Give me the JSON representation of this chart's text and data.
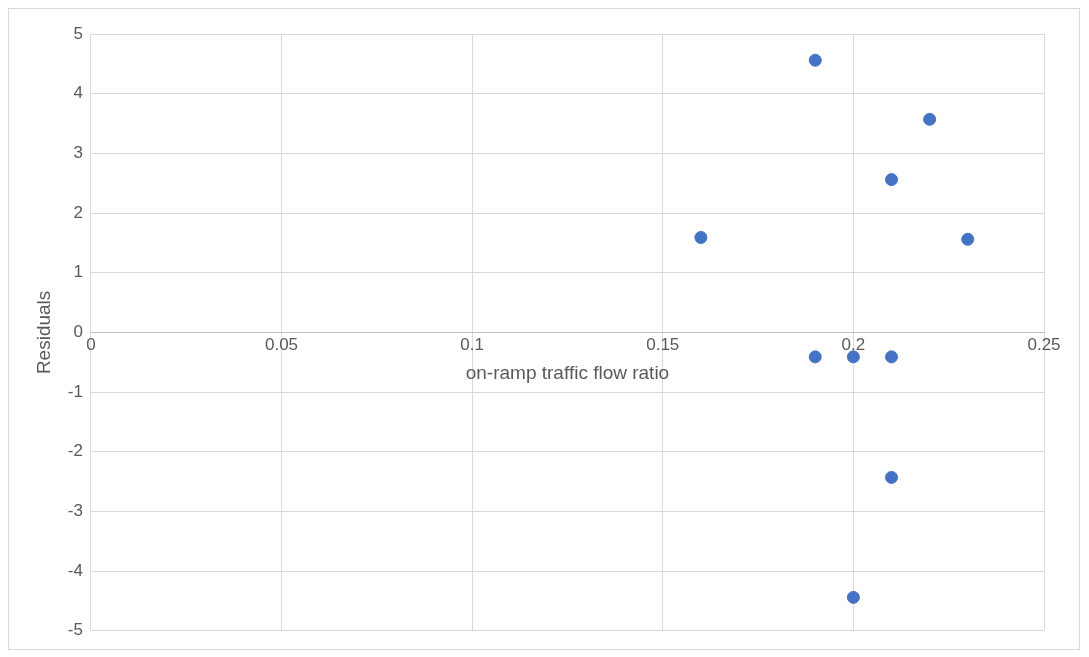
{
  "chart_data": {
    "type": "scatter",
    "xlabel": "on-ramp traffic flow ratio",
    "ylabel": "Residuals",
    "x": [
      0.19,
      0.22,
      0.21,
      0.16,
      0.23,
      0.19,
      0.2,
      0.21,
      0.21,
      0.2
    ],
    "values": [
      4.56,
      3.57,
      2.56,
      1.59,
      1.56,
      -0.41,
      -0.41,
      -0.41,
      -2.43,
      -4.44
    ],
    "color": "#4472c4",
    "marker": "circle",
    "grid": true,
    "legend": false,
    "xlim": [
      0,
      0.25
    ],
    "xticks": [
      0,
      0.05,
      0.1,
      0.15,
      0.2,
      0.25
    ],
    "ylim": [
      -5,
      5
    ],
    "yticks": [
      -5,
      -4,
      -3,
      -2,
      -1,
      0,
      1,
      2,
      3,
      4,
      5
    ]
  }
}
